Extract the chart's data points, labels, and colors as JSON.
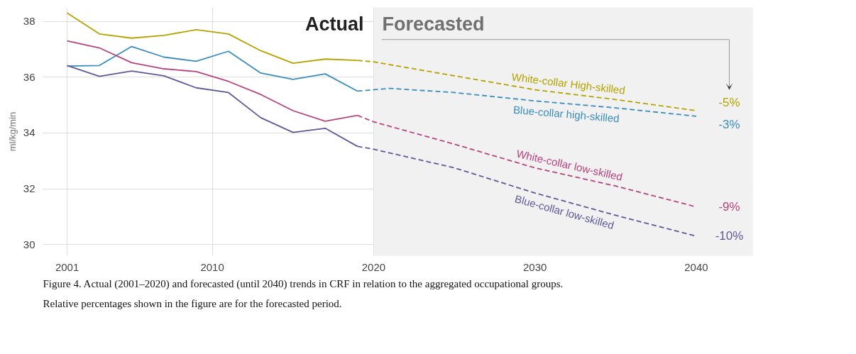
{
  "chart_data": {
    "type": "line",
    "ylabel": "ml/kg/min",
    "xlim": [
      1999.5,
      2043.5
    ],
    "ylim": [
      29.6,
      38.5
    ],
    "xticks": [
      2001,
      2010,
      2020,
      2030,
      2040
    ],
    "yticks": [
      30,
      32,
      34,
      36,
      38
    ],
    "grid": true,
    "legend": false,
    "series": [
      {
        "color": "#b5a300",
        "x": [
          2001,
          2003,
          2005,
          2007,
          2009,
          2011,
          2013,
          2015,
          2017,
          2019
        ],
        "values": [
          38.3,
          37.55,
          37.4,
          37.5,
          37.7,
          37.55,
          36.95,
          36.5,
          36.65,
          36.6
        ]
      },
      {
        "color": "#3a8dbd",
        "x": [
          2001,
          2003,
          2005,
          2007,
          2009,
          2011,
          2013,
          2015,
          2017,
          2019
        ],
        "values": [
          36.4,
          36.42,
          37.1,
          36.72,
          36.57,
          36.93,
          36.15,
          35.92,
          36.12,
          35.5
        ]
      },
      {
        "color": "#b8447f",
        "x": [
          2001,
          2003,
          2005,
          2007,
          2009,
          2011,
          2013,
          2015,
          2017,
          2019
        ],
        "values": [
          37.3,
          37.05,
          36.52,
          36.3,
          36.2,
          35.85,
          35.38,
          34.8,
          34.42,
          34.63
        ]
      },
      {
        "color": "#5d5a96",
        "x": [
          2001,
          2003,
          2005,
          2007,
          2009,
          2011,
          2013,
          2015,
          2017,
          2019
        ],
        "values": [
          36.42,
          36.03,
          36.22,
          36.05,
          35.62,
          35.45,
          34.55,
          34.02,
          34.17,
          33.52
        ]
      },
      {
        "name": "White-collar High-skilled",
        "color": "#b5a300",
        "line_style": "dashed",
        "x": [
          2019,
          2020,
          2025,
          2030,
          2035,
          2040
        ],
        "values": [
          36.6,
          36.55,
          36.05,
          35.55,
          35.2,
          34.8
        ]
      },
      {
        "name": "Blue-collar high-skilled",
        "color": "#3a8dbd",
        "line_style": "dashed",
        "x": [
          2019,
          2021,
          2025,
          2030,
          2035,
          2040
        ],
        "values": [
          35.5,
          35.6,
          35.45,
          35.15,
          34.9,
          34.6
        ]
      },
      {
        "name": "White-collar low-skilled",
        "color": "#b8447f",
        "line_style": "dashed",
        "x": [
          2019,
          2020,
          2025,
          2030,
          2035,
          2040
        ],
        "values": [
          34.63,
          34.4,
          33.6,
          32.75,
          32.1,
          31.35
        ]
      },
      {
        "name": "Blue-collar low-skilled",
        "color": "#5d5a96",
        "line_style": "dashed",
        "x": [
          2019,
          2020,
          2025,
          2030,
          2035,
          2040
        ],
        "values": [
          33.52,
          33.42,
          32.75,
          31.85,
          31.05,
          30.3
        ]
      }
    ],
    "bands": [
      {
        "axis": "x",
        "from": 2020,
        "to": 2043.5,
        "color": "#f1f1f1"
      }
    ],
    "annotations": [
      "Actual",
      "Forecasted",
      "-5%",
      "-3%",
      "-9%",
      "-10%",
      "Figure 4. Actual (2001–2020) and forecasted (until 2040) trends in CRF in relation to the aggregated occupational groups.",
      "Relative percentages shown in the figure are for the forecasted period."
    ]
  }
}
